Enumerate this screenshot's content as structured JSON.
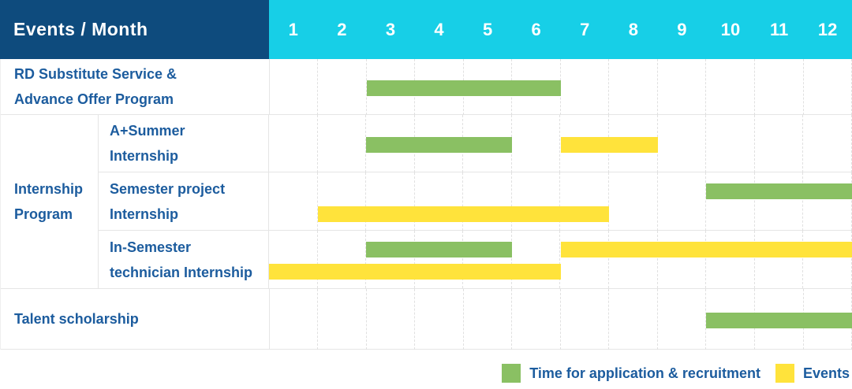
{
  "header": {
    "title": "Events / Month",
    "months": [
      "1",
      "2",
      "3",
      "4",
      "5",
      "6",
      "7",
      "8",
      "9",
      "10",
      "11",
      "12"
    ]
  },
  "colors": {
    "header_navy": "#0e4b7d",
    "header_cyan": "#17cfe7",
    "bar_green": "#8ac063",
    "bar_yellow": "#ffe33b",
    "label_blue": "#1c5c9e",
    "grid_line": "#e5e5e5"
  },
  "group_label": {
    "lines": [
      "Internship",
      "Program"
    ]
  },
  "rows": [
    {
      "id": "rd-substitute",
      "label_lines": [
        "RD Substitute Service &",
        "Advance Offer Program"
      ]
    },
    {
      "id": "a-summer",
      "label_lines": [
        "A+Summer",
        "Internship"
      ]
    },
    {
      "id": "semester-project",
      "label_lines": [
        "Semester project",
        "Internship"
      ]
    },
    {
      "id": "in-semester",
      "label_lines": [
        "In-Semester",
        "technician Internship"
      ]
    },
    {
      "id": "talent-scholarship",
      "label_lines": [
        "Talent scholarship"
      ]
    }
  ],
  "legend": {
    "items": [
      {
        "id": "application",
        "label": "Time for application & recruitment",
        "color": "#8ac063"
      },
      {
        "id": "event",
        "label": "Events",
        "color": "#ffe33b"
      }
    ]
  },
  "chart_data": {
    "type": "gantt",
    "title": "Events / Month",
    "x_axis": {
      "label": "Month",
      "ticks": [
        1,
        2,
        3,
        4,
        5,
        6,
        7,
        8,
        9,
        10,
        11,
        12
      ],
      "range": [
        1,
        12
      ]
    },
    "series_legend": [
      {
        "id": "application",
        "name": "Time for application & recruitment",
        "color": "#8ac063"
      },
      {
        "id": "event",
        "name": "Events",
        "color": "#ffe33b"
      }
    ],
    "bars": [
      {
        "row": "rd-substitute",
        "row_label": "RD Substitute Service & Advance Offer Program",
        "series": "application",
        "line": "single",
        "start_month": 3,
        "end_month": 6
      },
      {
        "row": "a-summer",
        "row_label": "A+Summer Internship",
        "group": "Internship Program",
        "series": "application",
        "line": "single",
        "start_month": 3,
        "end_month": 5
      },
      {
        "row": "a-summer",
        "row_label": "A+Summer Internship",
        "group": "Internship Program",
        "series": "event",
        "line": "single",
        "start_month": 7,
        "end_month": 8
      },
      {
        "row": "semester-project",
        "row_label": "Semester project Internship",
        "group": "Internship Program",
        "series": "application",
        "line": "upper",
        "start_month": 10,
        "end_month": 12
      },
      {
        "row": "semester-project",
        "row_label": "Semester project Internship",
        "group": "Internship Program",
        "series": "event",
        "line": "lower",
        "start_month": 2,
        "end_month": 7
      },
      {
        "row": "in-semester",
        "row_label": "In-Semester technician Internship",
        "group": "Internship Program",
        "series": "application",
        "line": "upper",
        "start_month": 3,
        "end_month": 5
      },
      {
        "row": "in-semester",
        "row_label": "In-Semester technician Internship",
        "group": "Internship Program",
        "series": "event",
        "line": "upper",
        "start_month": 7,
        "end_month": 12
      },
      {
        "row": "in-semester",
        "row_label": "In-Semester technician Internship",
        "group": "Internship Program",
        "series": "event",
        "line": "lower",
        "start_month": 1,
        "end_month": 6
      },
      {
        "row": "talent-scholarship",
        "row_label": "Talent scholarship",
        "series": "application",
        "line": "single",
        "start_month": 10,
        "end_month": 12
      }
    ]
  }
}
